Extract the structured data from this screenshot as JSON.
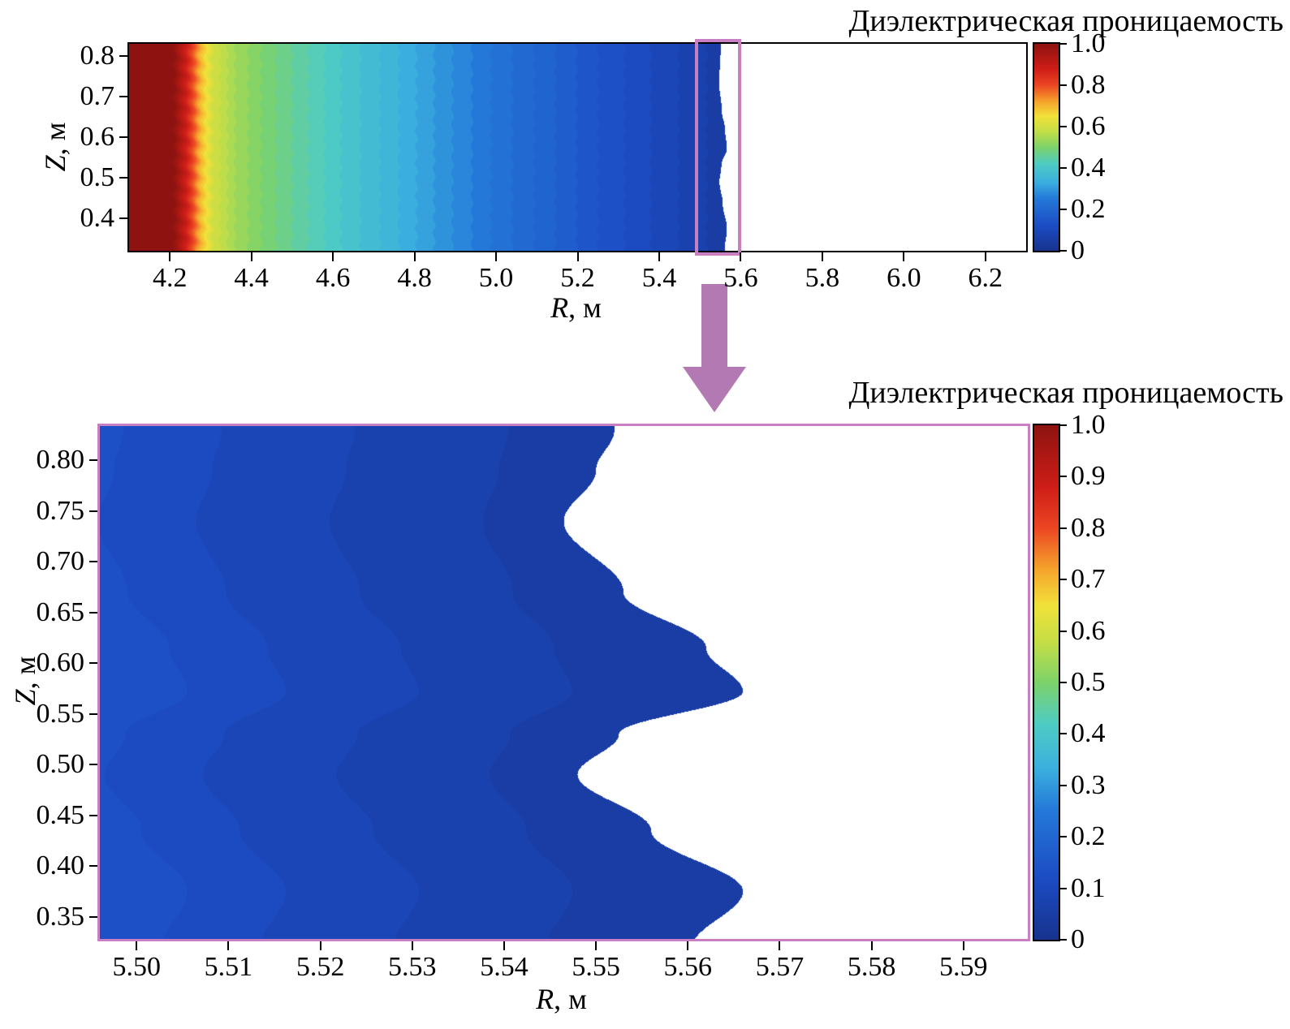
{
  "accent": {
    "zoom_box_color": "#c87fc4",
    "zoom_plot_border_color": "#c87fc4",
    "arrow_color": "#b279b2",
    "axis_color": "#000000",
    "no_data_color": "#ffffff"
  },
  "colormap": {
    "name": "jet-like",
    "stops": [
      [
        0.0,
        "#17338e"
      ],
      [
        0.12,
        "#1c4cc4"
      ],
      [
        0.25,
        "#2478d8"
      ],
      [
        0.33,
        "#3aaede"
      ],
      [
        0.42,
        "#4fccc3"
      ],
      [
        0.5,
        "#7dd26a"
      ],
      [
        0.58,
        "#c6de45"
      ],
      [
        0.65,
        "#f1e13a"
      ],
      [
        0.72,
        "#f5a42c"
      ],
      [
        0.8,
        "#ec4623"
      ],
      [
        0.88,
        "#ce1d17"
      ],
      [
        1.0,
        "#8e1310"
      ]
    ]
  },
  "chart_data": [
    {
      "id": "overview",
      "type": "heatmap",
      "title": "Диэлектрическая проницаемость",
      "xlabel": {
        "symbol": "R",
        "rest": ", м"
      },
      "ylabel": {
        "symbol": "Z",
        "rest": ", м"
      },
      "xlim": [
        4.1,
        6.3
      ],
      "ylim": [
        0.32,
        0.83
      ],
      "grid": false,
      "x_ticks": [
        {
          "value": 4.2,
          "label": "4.2"
        },
        {
          "value": 4.4,
          "label": "4.4"
        },
        {
          "value": 4.6,
          "label": "4.6"
        },
        {
          "value": 4.8,
          "label": "4.8"
        },
        {
          "value": 5.0,
          "label": "5.0"
        },
        {
          "value": 5.2,
          "label": "5.2"
        },
        {
          "value": 5.4,
          "label": "5.4"
        },
        {
          "value": 5.6,
          "label": "5.6"
        },
        {
          "value": 5.8,
          "label": "5.8"
        },
        {
          "value": 6.0,
          "label": "6.0"
        },
        {
          "value": 6.2,
          "label": "6.2"
        }
      ],
      "y_ticks": [
        {
          "value": 0.4,
          "label": "0.4"
        },
        {
          "value": 0.5,
          "label": "0.5"
        },
        {
          "value": 0.6,
          "label": "0.6"
        },
        {
          "value": 0.7,
          "label": "0.7"
        },
        {
          "value": 0.8,
          "label": "0.8"
        }
      ],
      "colorbar": {
        "min": 0,
        "max": 1,
        "ticks": [
          {
            "value": 0,
            "label": "0"
          },
          {
            "value": 0.2,
            "label": "0.2"
          },
          {
            "value": 0.4,
            "label": "0.4"
          },
          {
            "value": 0.6,
            "label": "0.6"
          },
          {
            "value": 0.8,
            "label": "0.8"
          },
          {
            "value": 1.0,
            "label": "1.0"
          }
        ]
      },
      "field": {
        "profile_R_value": [
          [
            4.1,
            1.0
          ],
          [
            4.21,
            1.0
          ],
          [
            4.245,
            0.86
          ],
          [
            4.275,
            0.7
          ],
          [
            4.305,
            0.6
          ],
          [
            4.36,
            0.54
          ],
          [
            4.44,
            0.49
          ],
          [
            4.52,
            0.45
          ],
          [
            4.62,
            0.4
          ],
          [
            4.74,
            0.35
          ],
          [
            4.87,
            0.29
          ],
          [
            5.0,
            0.235
          ],
          [
            5.12,
            0.19
          ],
          [
            5.25,
            0.14
          ],
          [
            5.38,
            0.1
          ],
          [
            5.48,
            0.07
          ],
          [
            5.57,
            0.045
          ]
        ],
        "quant_step": 0.02,
        "boundary_base": 5.5565,
        "band_wave_follow": 0,
        "edge_noise": 0.0035,
        "boundary_points_Z_R": [
          [
            0.32,
            5.5605
          ],
          [
            0.375,
            5.566
          ],
          [
            0.435,
            5.556
          ],
          [
            0.49,
            5.548
          ],
          [
            0.53,
            5.5525
          ],
          [
            0.572,
            5.566
          ],
          [
            0.615,
            5.562
          ],
          [
            0.67,
            5.553
          ],
          [
            0.74,
            5.5465
          ],
          [
            0.79,
            5.55
          ],
          [
            0.83,
            5.552
          ]
        ]
      },
      "highlight_box": {
        "x0": 5.488,
        "x1": 5.585
      }
    },
    {
      "id": "zoom",
      "type": "heatmap",
      "title": "Диэлектрическая проницаемость",
      "xlabel": {
        "symbol": "R",
        "rest": ", м"
      },
      "ylabel": {
        "symbol": "Z",
        "rest": ", м"
      },
      "xlim": [
        5.496,
        5.597
      ],
      "ylim": [
        0.328,
        0.834
      ],
      "grid": false,
      "x_ticks": [
        {
          "value": 5.5,
          "label": "5.50"
        },
        {
          "value": 5.51,
          "label": "5.51"
        },
        {
          "value": 5.52,
          "label": "5.52"
        },
        {
          "value": 5.53,
          "label": "5.53"
        },
        {
          "value": 5.54,
          "label": "5.54"
        },
        {
          "value": 5.55,
          "label": "5.55"
        },
        {
          "value": 5.56,
          "label": "5.56"
        },
        {
          "value": 5.57,
          "label": "5.57"
        },
        {
          "value": 5.58,
          "label": "5.58"
        },
        {
          "value": 5.59,
          "label": "5.59"
        }
      ],
      "y_ticks": [
        {
          "value": 0.35,
          "label": "0.35"
        },
        {
          "value": 0.4,
          "label": "0.40"
        },
        {
          "value": 0.45,
          "label": "0.45"
        },
        {
          "value": 0.5,
          "label": "0.50"
        },
        {
          "value": 0.55,
          "label": "0.55"
        },
        {
          "value": 0.6,
          "label": "0.60"
        },
        {
          "value": 0.65,
          "label": "0.65"
        },
        {
          "value": 0.7,
          "label": "0.70"
        },
        {
          "value": 0.75,
          "label": "0.75"
        },
        {
          "value": 0.8,
          "label": "0.80"
        }
      ],
      "colorbar": {
        "min": 0,
        "max": 1,
        "ticks": [
          {
            "value": 0,
            "label": "0"
          },
          {
            "value": 0.1,
            "label": "0.1"
          },
          {
            "value": 0.2,
            "label": "0.2"
          },
          {
            "value": 0.3,
            "label": "0.3"
          },
          {
            "value": 0.4,
            "label": "0.4"
          },
          {
            "value": 0.5,
            "label": "0.5"
          },
          {
            "value": 0.6,
            "label": "0.6"
          },
          {
            "value": 0.7,
            "label": "0.7"
          },
          {
            "value": 0.8,
            "label": "0.8"
          },
          {
            "value": 0.9,
            "label": "0.9"
          },
          {
            "value": 1.0,
            "label": "1.0"
          }
        ]
      },
      "field": {
        "profile_R_value": [
          [
            5.496,
            0.13
          ],
          [
            5.508,
            0.105
          ],
          [
            5.522,
            0.085
          ],
          [
            5.538,
            0.065
          ],
          [
            5.552,
            0.05
          ],
          [
            5.567,
            0.038
          ],
          [
            5.597,
            0.03
          ]
        ],
        "quant_step": 0.02,
        "boundary_base": 5.5565,
        "band_wave_follow": 0.5,
        "edge_noise": 0,
        "boundary_points_Z_R": [
          [
            0.32,
            5.5605
          ],
          [
            0.375,
            5.566
          ],
          [
            0.435,
            5.556
          ],
          [
            0.49,
            5.548
          ],
          [
            0.53,
            5.5525
          ],
          [
            0.572,
            5.566
          ],
          [
            0.615,
            5.562
          ],
          [
            0.67,
            5.553
          ],
          [
            0.74,
            5.5465
          ],
          [
            0.79,
            5.55
          ],
          [
            0.83,
            5.552
          ]
        ]
      }
    }
  ]
}
